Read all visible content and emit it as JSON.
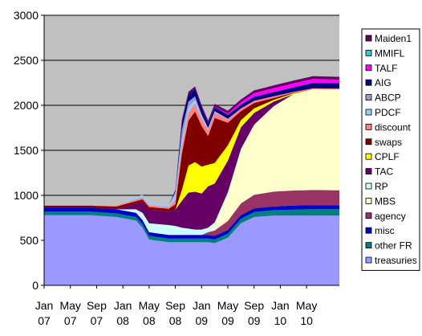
{
  "chart_data": {
    "type": "area",
    "stacked": true,
    "plot_background": "#c0c0c0",
    "grid": "horizontal",
    "legend_position": "right",
    "ylim": [
      0,
      3000
    ],
    "yticks": [
      0,
      500,
      1000,
      1500,
      2000,
      2500,
      3000
    ],
    "ytick_labels": [
      "0",
      "500",
      "1000",
      "1500",
      "2000",
      "2500",
      "3000"
    ],
    "xlim": [
      "2007-01",
      "2010-10"
    ],
    "x_ticks": [
      "2007-01",
      "2007-05",
      "2007-09",
      "2008-01",
      "2008-05",
      "2008-09",
      "2009-01",
      "2009-05",
      "2009-09",
      "2010-01",
      "2010-05"
    ],
    "x_tick_labels": [
      [
        "Jan",
        "07"
      ],
      [
        "May",
        "07"
      ],
      [
        "Sep",
        "07"
      ],
      [
        "Jan",
        "08"
      ],
      [
        "May",
        "08"
      ],
      [
        "Sep",
        "08"
      ],
      [
        "Jan",
        "09"
      ],
      [
        "May",
        "09"
      ],
      [
        "Sep",
        "09"
      ],
      [
        "Jan",
        "10"
      ],
      [
        "May",
        "10"
      ]
    ],
    "x": [
      "2007-01",
      "2007-08",
      "2007-12",
      "2008-03",
      "2008-04",
      "2008-05",
      "2008-08",
      "2008-09",
      "2008-10",
      "2008-11",
      "2008-12",
      "2009-01",
      "2009-02",
      "2009-03",
      "2009-05",
      "2009-07",
      "2009-09",
      "2009-12",
      "2010-03",
      "2010-06",
      "2010-10"
    ],
    "series": [
      {
        "name": "treasuries",
        "color": "#9999ff",
        "values": [
          780,
          780,
          760,
          720,
          640,
          510,
          480,
          480,
          480,
          480,
          480,
          480,
          480,
          470,
          530,
          690,
          760,
          776,
          776,
          776,
          776
        ]
      },
      {
        "name": "other FR",
        "color": "#008080",
        "values": [
          40,
          40,
          40,
          40,
          40,
          40,
          40,
          40,
          40,
          40,
          40,
          40,
          40,
          40,
          45,
          50,
          55,
          60,
          65,
          70,
          70
        ]
      },
      {
        "name": "misc",
        "color": "#0000cc",
        "values": [
          45,
          45,
          45,
          45,
          45,
          40,
          40,
          40,
          40,
          40,
          40,
          40,
          40,
          40,
          40,
          40,
          40,
          40,
          45,
          45,
          45
        ]
      },
      {
        "name": "agency",
        "color": "#993366",
        "values": [
          0,
          0,
          0,
          0,
          0,
          0,
          0,
          0,
          0,
          0,
          0,
          0,
          30,
          60,
          100,
          130,
          150,
          165,
          168,
          168,
          165
        ]
      },
      {
        "name": "MBS",
        "color": "#ffffcc",
        "values": [
          0,
          0,
          0,
          0,
          0,
          0,
          0,
          0,
          0,
          0,
          0,
          0,
          0,
          50,
          300,
          600,
          780,
          950,
          1070,
          1120,
          1120
        ]
      },
      {
        "name": "RP",
        "color": "#ccffff",
        "values": [
          0,
          0,
          0,
          40,
          80,
          100,
          110,
          100,
          80,
          70,
          60,
          60,
          50,
          40,
          20,
          5,
          0,
          0,
          0,
          0,
          0
        ]
      },
      {
        "name": "TAC",
        "color": "#660066",
        "values": [
          0,
          0,
          0,
          60,
          120,
          150,
          150,
          180,
          300,
          400,
          420,
          400,
          460,
          430,
          350,
          240,
          130,
          50,
          0,
          0,
          0
        ]
      },
      {
        "name": "CPLF",
        "color": "#ffff00",
        "values": [
          0,
          0,
          0,
          0,
          0,
          0,
          0,
          0,
          120,
          300,
          330,
          300,
          240,
          230,
          170,
          80,
          50,
          20,
          10,
          0,
          0
        ]
      },
      {
        "name": "swaps",
        "color": "#800000",
        "values": [
          20,
          20,
          30,
          30,
          30,
          30,
          30,
          60,
          400,
          500,
          560,
          450,
          320,
          500,
          250,
          100,
          60,
          20,
          5,
          0,
          0
        ]
      },
      {
        "name": "discount",
        "color": "#ff8080",
        "values": [
          0,
          0,
          10,
          20,
          20,
          20,
          20,
          50,
          80,
          90,
          90,
          80,
          60,
          60,
          40,
          30,
          25,
          20,
          10,
          10,
          10
        ]
      },
      {
        "name": "PDCF",
        "color": "#99ccff",
        "values": [
          0,
          0,
          0,
          30,
          30,
          30,
          20,
          60,
          80,
          60,
          40,
          30,
          20,
          10,
          5,
          0,
          0,
          0,
          0,
          0,
          0
        ]
      },
      {
        "name": "ABCP",
        "color": "#9999cc",
        "values": [
          0,
          0,
          0,
          0,
          0,
          0,
          0,
          30,
          110,
          60,
          40,
          20,
          10,
          5,
          0,
          0,
          0,
          0,
          0,
          0,
          0
        ]
      },
      {
        "name": "AIG",
        "color": "#000080",
        "values": [
          0,
          0,
          0,
          0,
          0,
          0,
          0,
          20,
          80,
          80,
          80,
          70,
          50,
          45,
          44,
          40,
          45,
          45,
          50,
          60,
          60
        ]
      },
      {
        "name": "TALF",
        "color": "#ff00ff",
        "values": [
          0,
          0,
          0,
          0,
          0,
          0,
          0,
          0,
          0,
          0,
          0,
          0,
          0,
          5,
          15,
          30,
          40,
          45,
          45,
          45,
          40
        ]
      },
      {
        "name": "MMIFL",
        "color": "#33cccc",
        "values": [
          0,
          0,
          0,
          0,
          0,
          0,
          0,
          0,
          0,
          0,
          0,
          0,
          0,
          0,
          0,
          0,
          0,
          0,
          0,
          0,
          0
        ]
      },
      {
        "name": "Maiden1",
        "color": "#660066",
        "values": [
          0,
          0,
          0,
          0,
          0,
          0,
          0,
          0,
          30,
          30,
          30,
          30,
          30,
          30,
          30,
          30,
          30,
          30,
          30,
          30,
          30
        ]
      }
    ],
    "legend_order": [
      "Maiden1",
      "MMIFL",
      "TALF",
      "AIG",
      "ABCP",
      "PDCF",
      "discount",
      "swaps",
      "CPLF",
      "TAC",
      "RP",
      "MBS",
      "agency",
      "misc",
      "other FR",
      "treasuries"
    ]
  }
}
